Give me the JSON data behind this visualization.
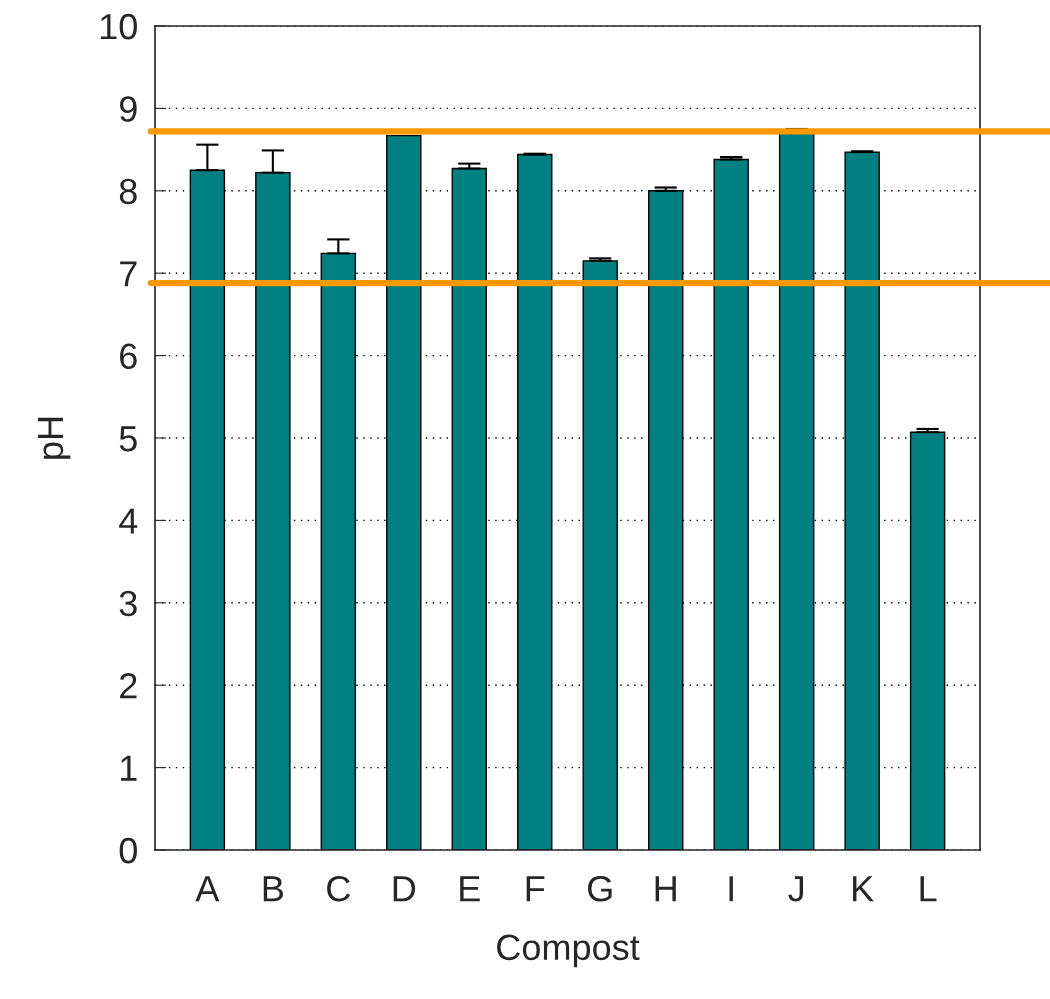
{
  "chart_data": {
    "type": "bar",
    "xlabel": "Compost",
    "ylabel": "pH",
    "categories": [
      "A",
      "B",
      "C",
      "D",
      "E",
      "F",
      "G",
      "H",
      "I",
      "J",
      "K",
      "L"
    ],
    "values": [
      8.25,
      8.22,
      7.24,
      8.67,
      8.27,
      8.44,
      7.15,
      8.0,
      8.38,
      8.72,
      8.47,
      5.07
    ],
    "errors": [
      [
        8.25,
        8.56
      ],
      [
        8.22,
        8.49
      ],
      [
        7.24,
        7.41
      ],
      null,
      [
        8.27,
        8.33
      ],
      [
        8.44,
        8.45
      ],
      [
        7.15,
        7.18
      ],
      [
        8.0,
        8.04
      ],
      [
        8.38,
        8.41
      ],
      [
        8.72,
        8.75
      ],
      [
        8.47,
        8.48
      ],
      [
        5.07,
        5.11
      ]
    ],
    "color": "#008080",
    "ylim": [
      0,
      10
    ],
    "yticks": [
      0,
      1,
      2,
      3,
      4,
      5,
      6,
      7,
      8,
      9,
      10
    ],
    "grid": "y",
    "ref_lines": [
      {
        "axis": "y",
        "value": 8.72,
        "color": "#ff9900"
      },
      {
        "axis": "y",
        "value": 6.88,
        "color": "#ff9900"
      }
    ]
  }
}
